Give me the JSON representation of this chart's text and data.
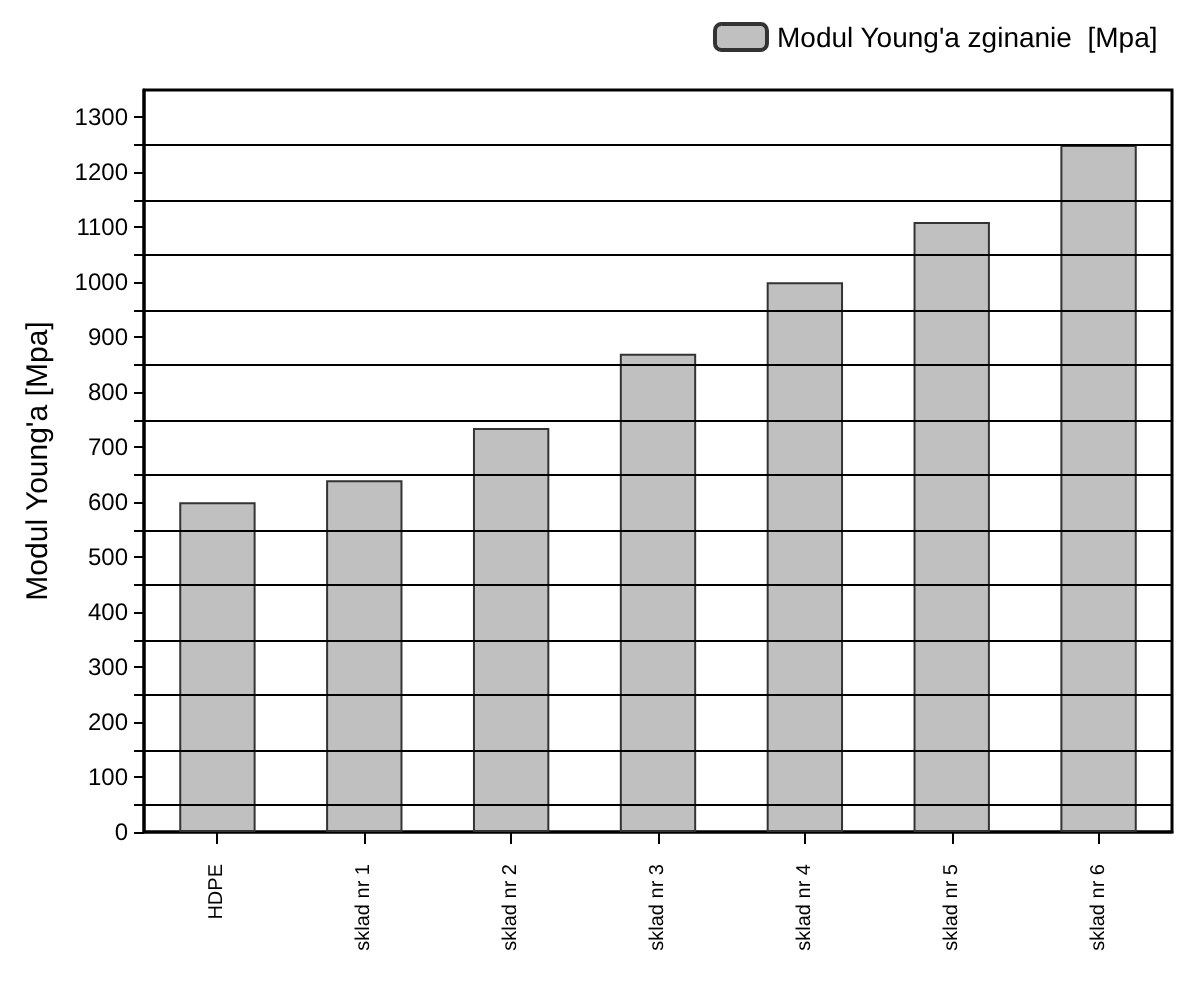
{
  "chart_data": {
    "type": "bar",
    "ylabel": "Modul Young'a [Mpa]",
    "categories": [
      "HDPE",
      "sklad nr 1",
      "sklad nr 2",
      "sklad nr 3",
      "sklad nr 4",
      "sklad nr 5",
      "sklad nr 6"
    ],
    "series": [
      {
        "name": "Modul Young'a zginanie  [Mpa]",
        "color": "#c0c0c0",
        "values": [
          600,
          640,
          735,
          870,
          1000,
          1110,
          1250
        ]
      }
    ],
    "ylim": [
      0,
      1350
    ],
    "yticks": [
      0,
      {
        "value": 50,
        "label": null
      },
      100,
      {
        "value": 150,
        "label": null
      },
      200,
      {
        "value": 250,
        "label": null
      },
      300,
      {
        "value": 350,
        "label": null
      },
      400,
      {
        "value": 450,
        "label": null
      },
      500,
      {
        "value": 550,
        "label": null
      },
      600,
      {
        "value": 650,
        "label": null
      },
      700,
      {
        "value": 750,
        "label": null
      },
      800,
      {
        "value": 850,
        "label": null
      },
      900,
      {
        "value": 950,
        "label": null
      },
      1000,
      {
        "value": 1050,
        "label": null
      },
      1100,
      {
        "value": 1150,
        "label": null
      },
      1200,
      {
        "value": 1250,
        "label": null
      },
      1300
    ],
    "grid": true,
    "legend": "top right"
  }
}
